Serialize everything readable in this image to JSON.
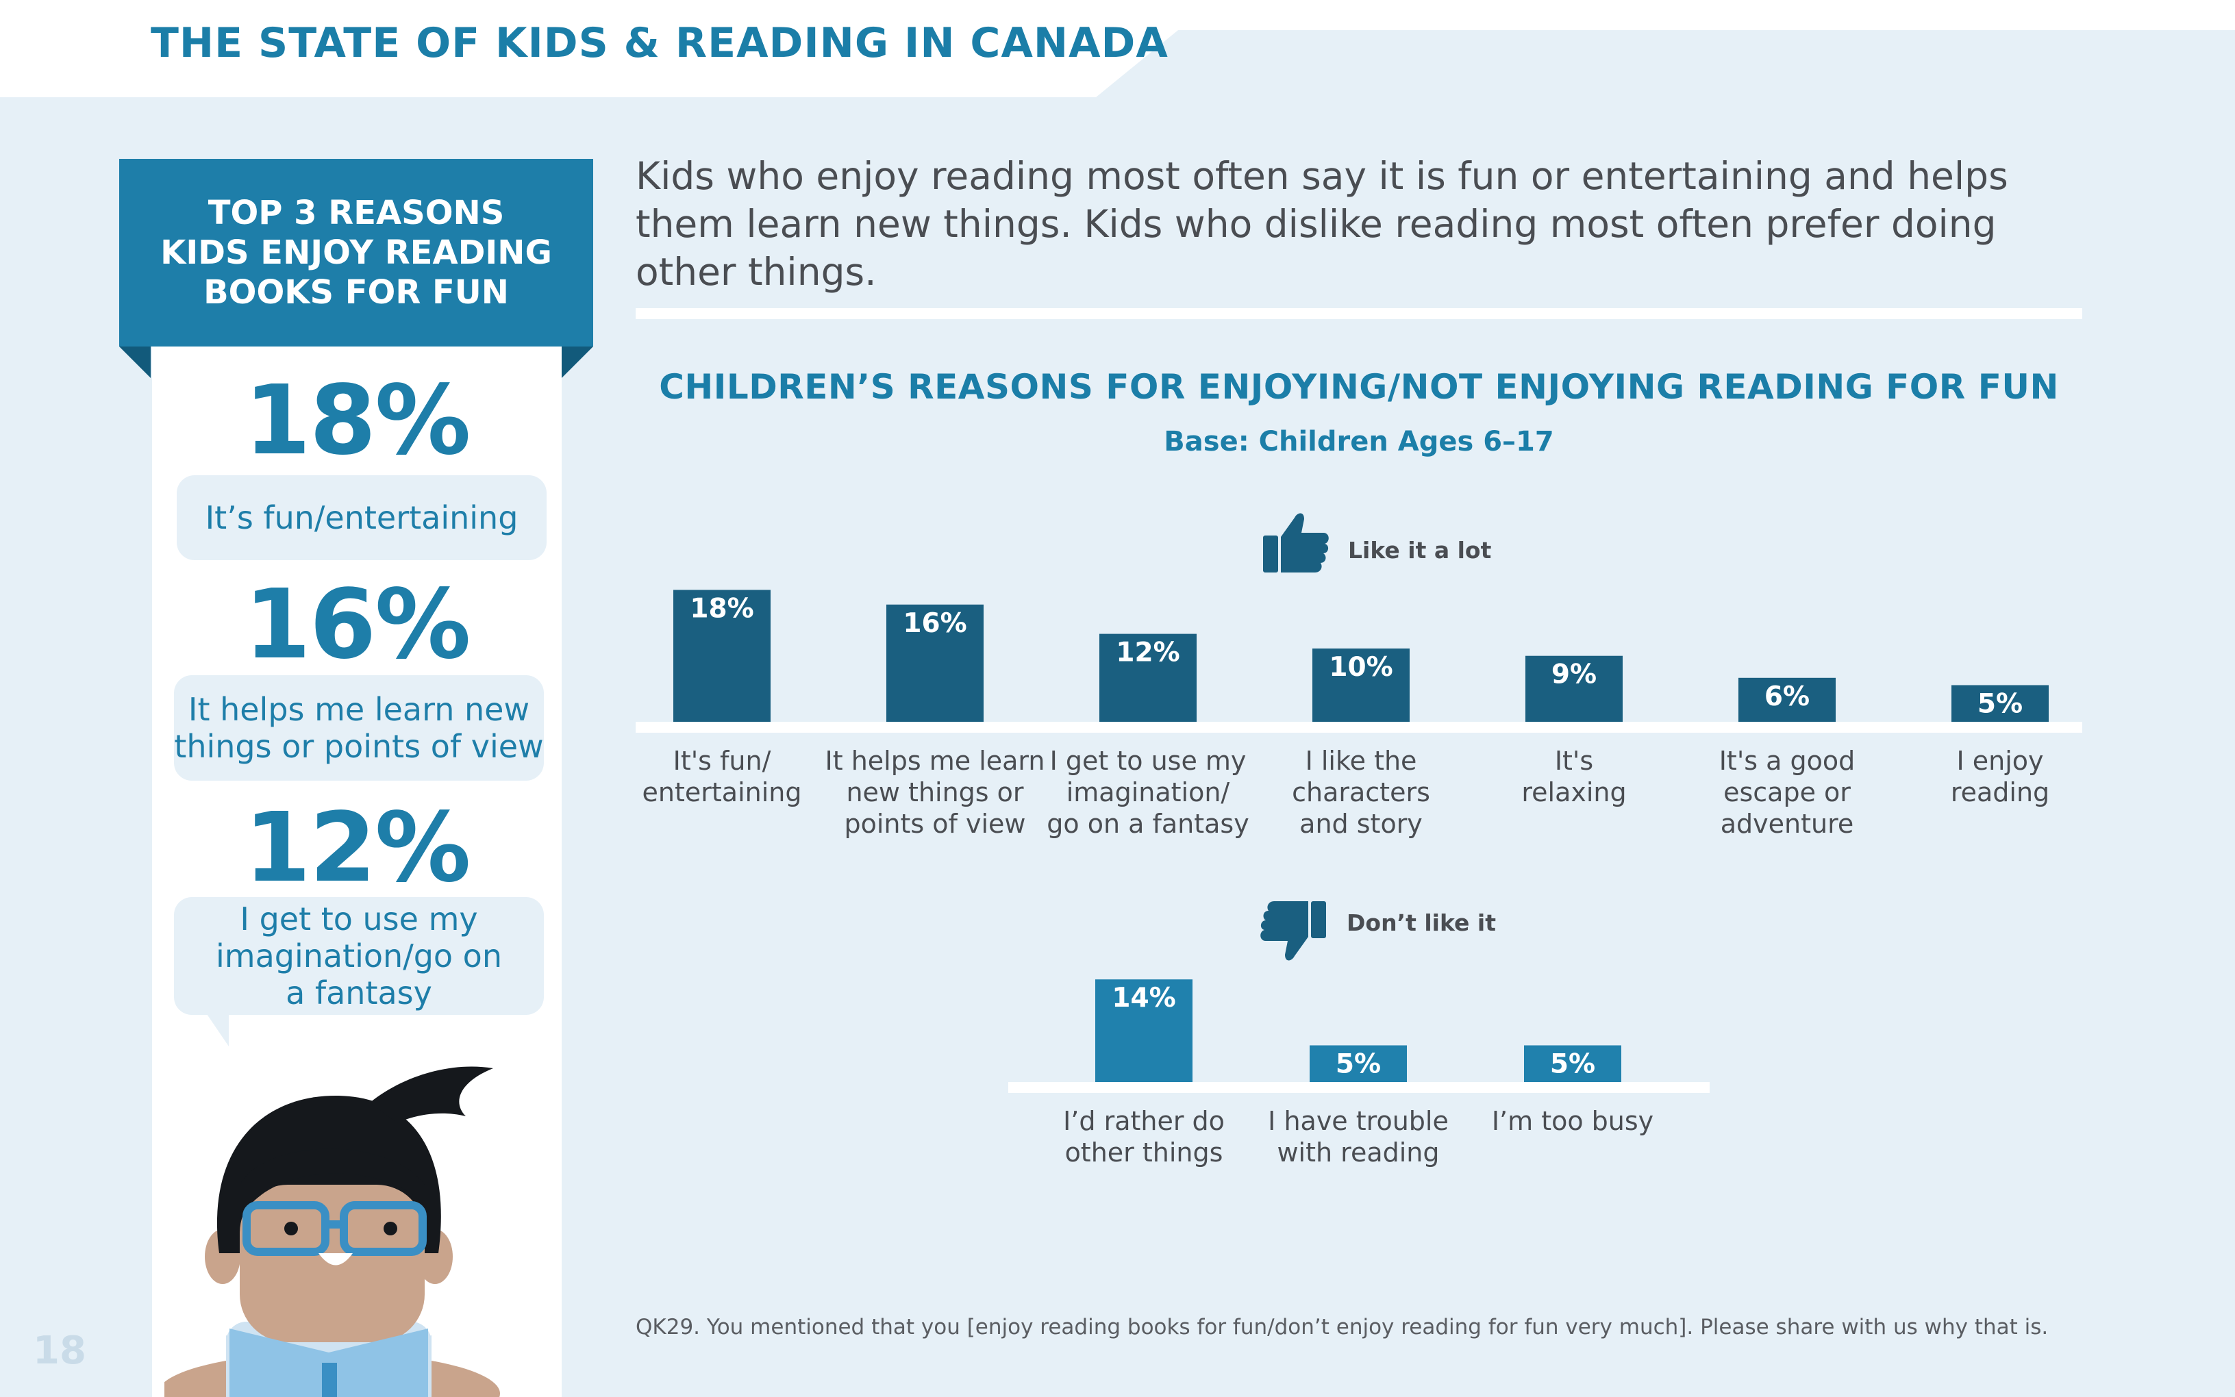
{
  "header": {
    "title": "THE STATE OF KIDS & READING IN CANADA"
  },
  "page_number": "18",
  "sidebar": {
    "banner_lines": [
      "TOP 3 REASONS",
      "KIDS ENJOY READING",
      "BOOKS FOR FUN"
    ],
    "items": [
      {
        "percent": "18%",
        "reason": "It’s fun/entertaining"
      },
      {
        "percent": "16%",
        "reason_lines": [
          "It helps me learn new",
          "things or points of view"
        ]
      },
      {
        "percent": "12%",
        "reason_lines": [
          "I get to use my",
          "imagination/go on",
          "a fantasy"
        ]
      }
    ]
  },
  "headline": "Kids who enjoy reading most often say it is fun or entertaining and helps them learn new things. Kids who dislike reading most often prefer doing other things.",
  "footnote": "QK29. You mentioned that you [enjoy reading books for fun/don’t enjoy reading for fun very much]. Please share with us why that is.",
  "colors": {
    "accent": "#1e7ea9",
    "dark_bar": "#1a5f80",
    "light_bar": "#2081ad",
    "panel_bg": "#e6f0f7"
  },
  "icons": [
    "thumbs-up-icon",
    "thumbs-down-icon"
  ],
  "chart_data": [
    {
      "type": "bar",
      "title": "CHILDREN’S REASONS FOR ENJOYING/NOT ENJOYING READING FOR FUN",
      "subtitle": "Base: Children Ages 6–17",
      "series_name": "Like it a lot",
      "categories": [
        [
          "It's fun/",
          "entertaining"
        ],
        [
          "It helps me learn",
          "new things or",
          "points of view"
        ],
        [
          "I get to use my",
          "imagination/",
          "go on a fantasy"
        ],
        [
          "I like the",
          "characters",
          "and story"
        ],
        [
          "It's",
          "relaxing"
        ],
        [
          "It's a good",
          "escape or",
          "adventure"
        ],
        [
          "I enjoy",
          "reading"
        ]
      ],
      "values": [
        18,
        16,
        12,
        10,
        9,
        6,
        5
      ],
      "value_labels": [
        "18%",
        "16%",
        "12%",
        "10%",
        "9%",
        "6%",
        "5%"
      ],
      "unit": "%"
    },
    {
      "type": "bar",
      "series_name": "Don’t like it",
      "categories": [
        [
          "I’d rather do",
          "other things"
        ],
        [
          "I have trouble",
          "with reading"
        ],
        [
          "I’m too busy"
        ]
      ],
      "values": [
        14,
        5,
        5
      ],
      "value_labels": [
        "14%",
        "5%",
        "5%"
      ],
      "unit": "%"
    }
  ]
}
